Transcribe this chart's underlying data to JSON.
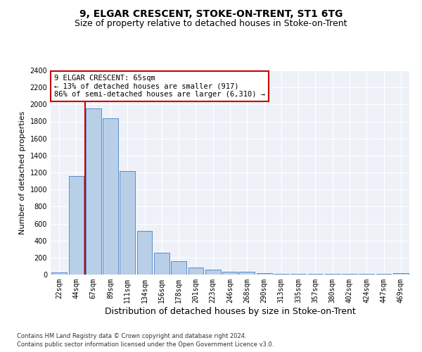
{
  "title": "9, ELGAR CRESCENT, STOKE-ON-TRENT, ST1 6TG",
  "subtitle": "Size of property relative to detached houses in Stoke-on-Trent",
  "xlabel": "Distribution of detached houses by size in Stoke-on-Trent",
  "ylabel": "Number of detached properties",
  "categories": [
    "22sqm",
    "44sqm",
    "67sqm",
    "89sqm",
    "111sqm",
    "134sqm",
    "156sqm",
    "178sqm",
    "201sqm",
    "223sqm",
    "246sqm",
    "268sqm",
    "290sqm",
    "313sqm",
    "335sqm",
    "357sqm",
    "380sqm",
    "402sqm",
    "424sqm",
    "447sqm",
    "469sqm"
  ],
  "values": [
    25,
    1155,
    1950,
    1840,
    1220,
    510,
    260,
    155,
    80,
    55,
    35,
    35,
    20,
    10,
    10,
    10,
    10,
    5,
    5,
    5,
    18
  ],
  "bar_color": "#b8cfe8",
  "bar_edge_color": "#5b8bc9",
  "vline_color": "#cc0000",
  "annotation_text": "9 ELGAR CRESCENT: 65sqm\n← 13% of detached houses are smaller (917)\n86% of semi-detached houses are larger (6,310) →",
  "annotation_box_color": "#ffffff",
  "annotation_box_edge_color": "#cc0000",
  "ylim": [
    0,
    2400
  ],
  "background_color": "#eef2f8",
  "footer_line1": "Contains HM Land Registry data © Crown copyright and database right 2024.",
  "footer_line2": "Contains public sector information licensed under the Open Government Licence v3.0.",
  "title_fontsize": 10,
  "subtitle_fontsize": 9,
  "ylabel_fontsize": 8,
  "xlabel_fontsize": 9,
  "tick_fontsize": 7,
  "annot_fontsize": 7.5
}
